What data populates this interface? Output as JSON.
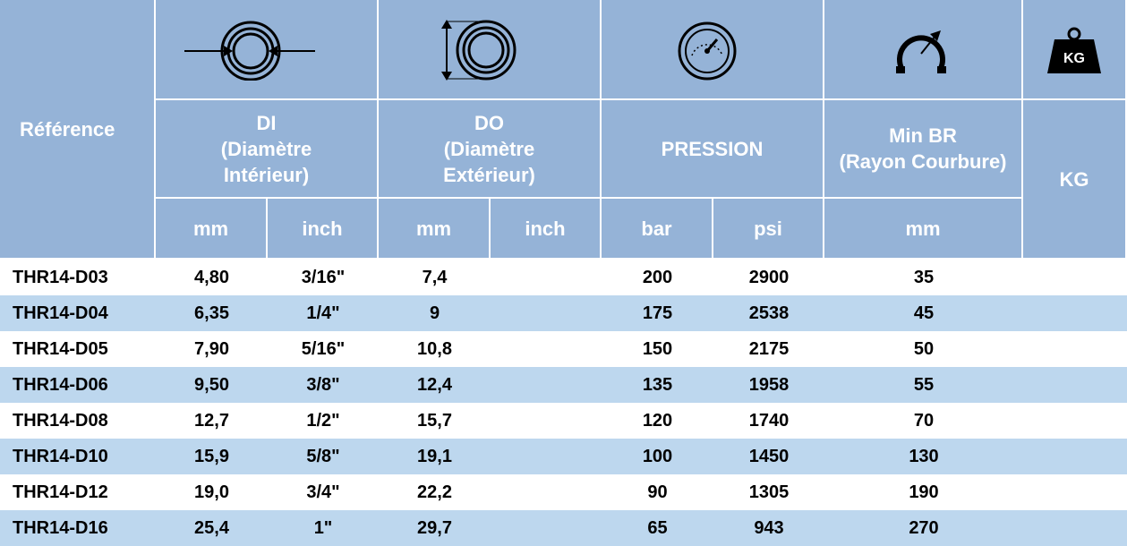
{
  "header": {
    "reference": "Référence",
    "groups": [
      {
        "lines": [
          "DI",
          "(Diamètre",
          "Intérieur)"
        ]
      },
      {
        "lines": [
          "DO",
          "(Diamètre",
          "Extérieur)"
        ]
      },
      {
        "lines": [
          "PRESSION"
        ]
      },
      {
        "lines": [
          "Min BR",
          "(Rayon Courbure)"
        ]
      }
    ],
    "kg": "KG",
    "kg_icon": "KG",
    "units": [
      "mm",
      "inch",
      "mm",
      "inch",
      "bar",
      "psi",
      "mm"
    ]
  },
  "rows": [
    {
      "ref": "THR14-D03",
      "di_mm": "4,80",
      "di_inch": "3/16\"",
      "do_mm": "7,4",
      "bar": "200",
      "psi": "2900",
      "br_mm": "35"
    },
    {
      "ref": "THR14-D04",
      "di_mm": "6,35",
      "di_inch": "1/4\"",
      "do_mm": "9",
      "bar": "175",
      "psi": "2538",
      "br_mm": "45"
    },
    {
      "ref": "THR14-D05",
      "di_mm": "7,90",
      "di_inch": "5/16\"",
      "do_mm": "10,8",
      "bar": "150",
      "psi": "2175",
      "br_mm": "50"
    },
    {
      "ref": "THR14-D06",
      "di_mm": "9,50",
      "di_inch": "3/8\"",
      "do_mm": "12,4",
      "bar": "135",
      "psi": "1958",
      "br_mm": "55"
    },
    {
      "ref": "THR14-D08",
      "di_mm": "12,7",
      "di_inch": "1/2\"",
      "do_mm": "15,7",
      "bar": "120",
      "psi": "1740",
      "br_mm": "70"
    },
    {
      "ref": "THR14-D10",
      "di_mm": "15,9",
      "di_inch": "5/8\"",
      "do_mm": "19,1",
      "bar": "100",
      "psi": "1450",
      "br_mm": "130"
    },
    {
      "ref": "THR14-D12",
      "di_mm": "19,0",
      "di_inch": "3/4\"",
      "do_mm": "22,2",
      "bar": "90",
      "psi": "1305",
      "br_mm": "190"
    },
    {
      "ref": "THR14-D16",
      "di_mm": "25,4",
      "di_inch": "1\"",
      "do_mm": "29,7",
      "bar": "65",
      "psi": "943",
      "br_mm": "270"
    }
  ]
}
